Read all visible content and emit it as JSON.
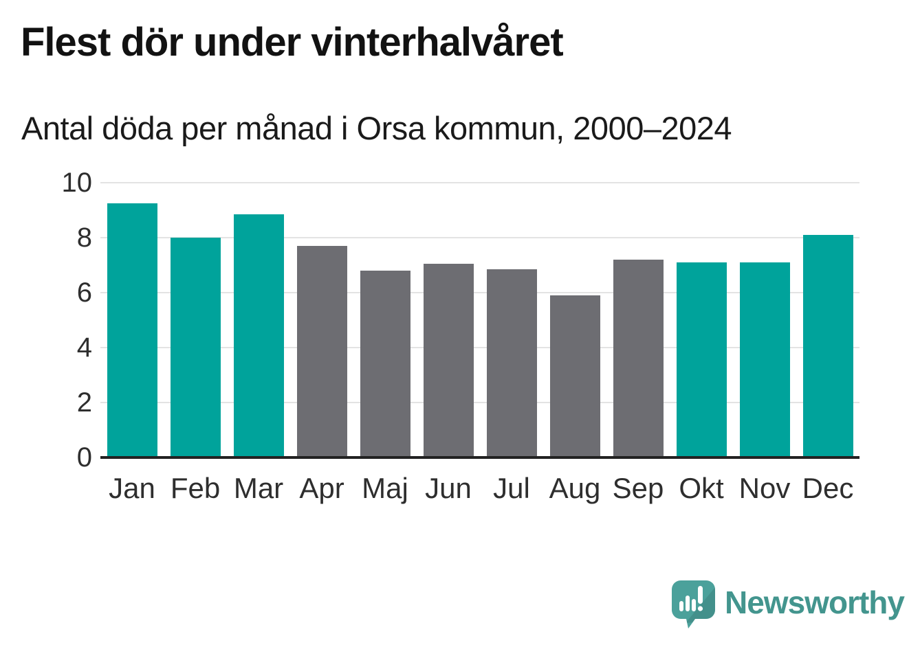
{
  "chart_data": {
    "type": "bar",
    "title": "Flest dör under vinterhalvåret",
    "subtitle": "Antal döda per månad i Orsa kommun, 2000–2024",
    "categories": [
      "Jan",
      "Feb",
      "Mar",
      "Apr",
      "Maj",
      "Jun",
      "Jul",
      "Aug",
      "Sep",
      "Okt",
      "Nov",
      "Dec"
    ],
    "values": [
      9.25,
      8.0,
      8.85,
      7.7,
      6.8,
      7.05,
      6.85,
      5.9,
      7.2,
      7.1,
      7.1,
      8.1
    ],
    "highlighted": [
      true,
      true,
      true,
      false,
      false,
      false,
      false,
      false,
      false,
      true,
      true,
      true
    ],
    "highlight_color": "#00a39b",
    "base_color": "#6d6d72",
    "xlabel": "",
    "ylabel": "",
    "ylim": [
      0,
      10
    ],
    "yticks": [
      0,
      2,
      4,
      6,
      8,
      10
    ],
    "grid": true,
    "legend_position": "none",
    "gridline_color": "#e3e3e3",
    "axis_line_color": "#222222",
    "tick_label_color": "#2e2e2e"
  },
  "branding": {
    "logo_text": "Newsworthy",
    "logo_icon": "newsworthy-speech-bubble-chart-icon",
    "wordmark_color": "#43958e",
    "bubble_color": "#4ba19b",
    "bubble_fold_color": "#3b8b85"
  }
}
